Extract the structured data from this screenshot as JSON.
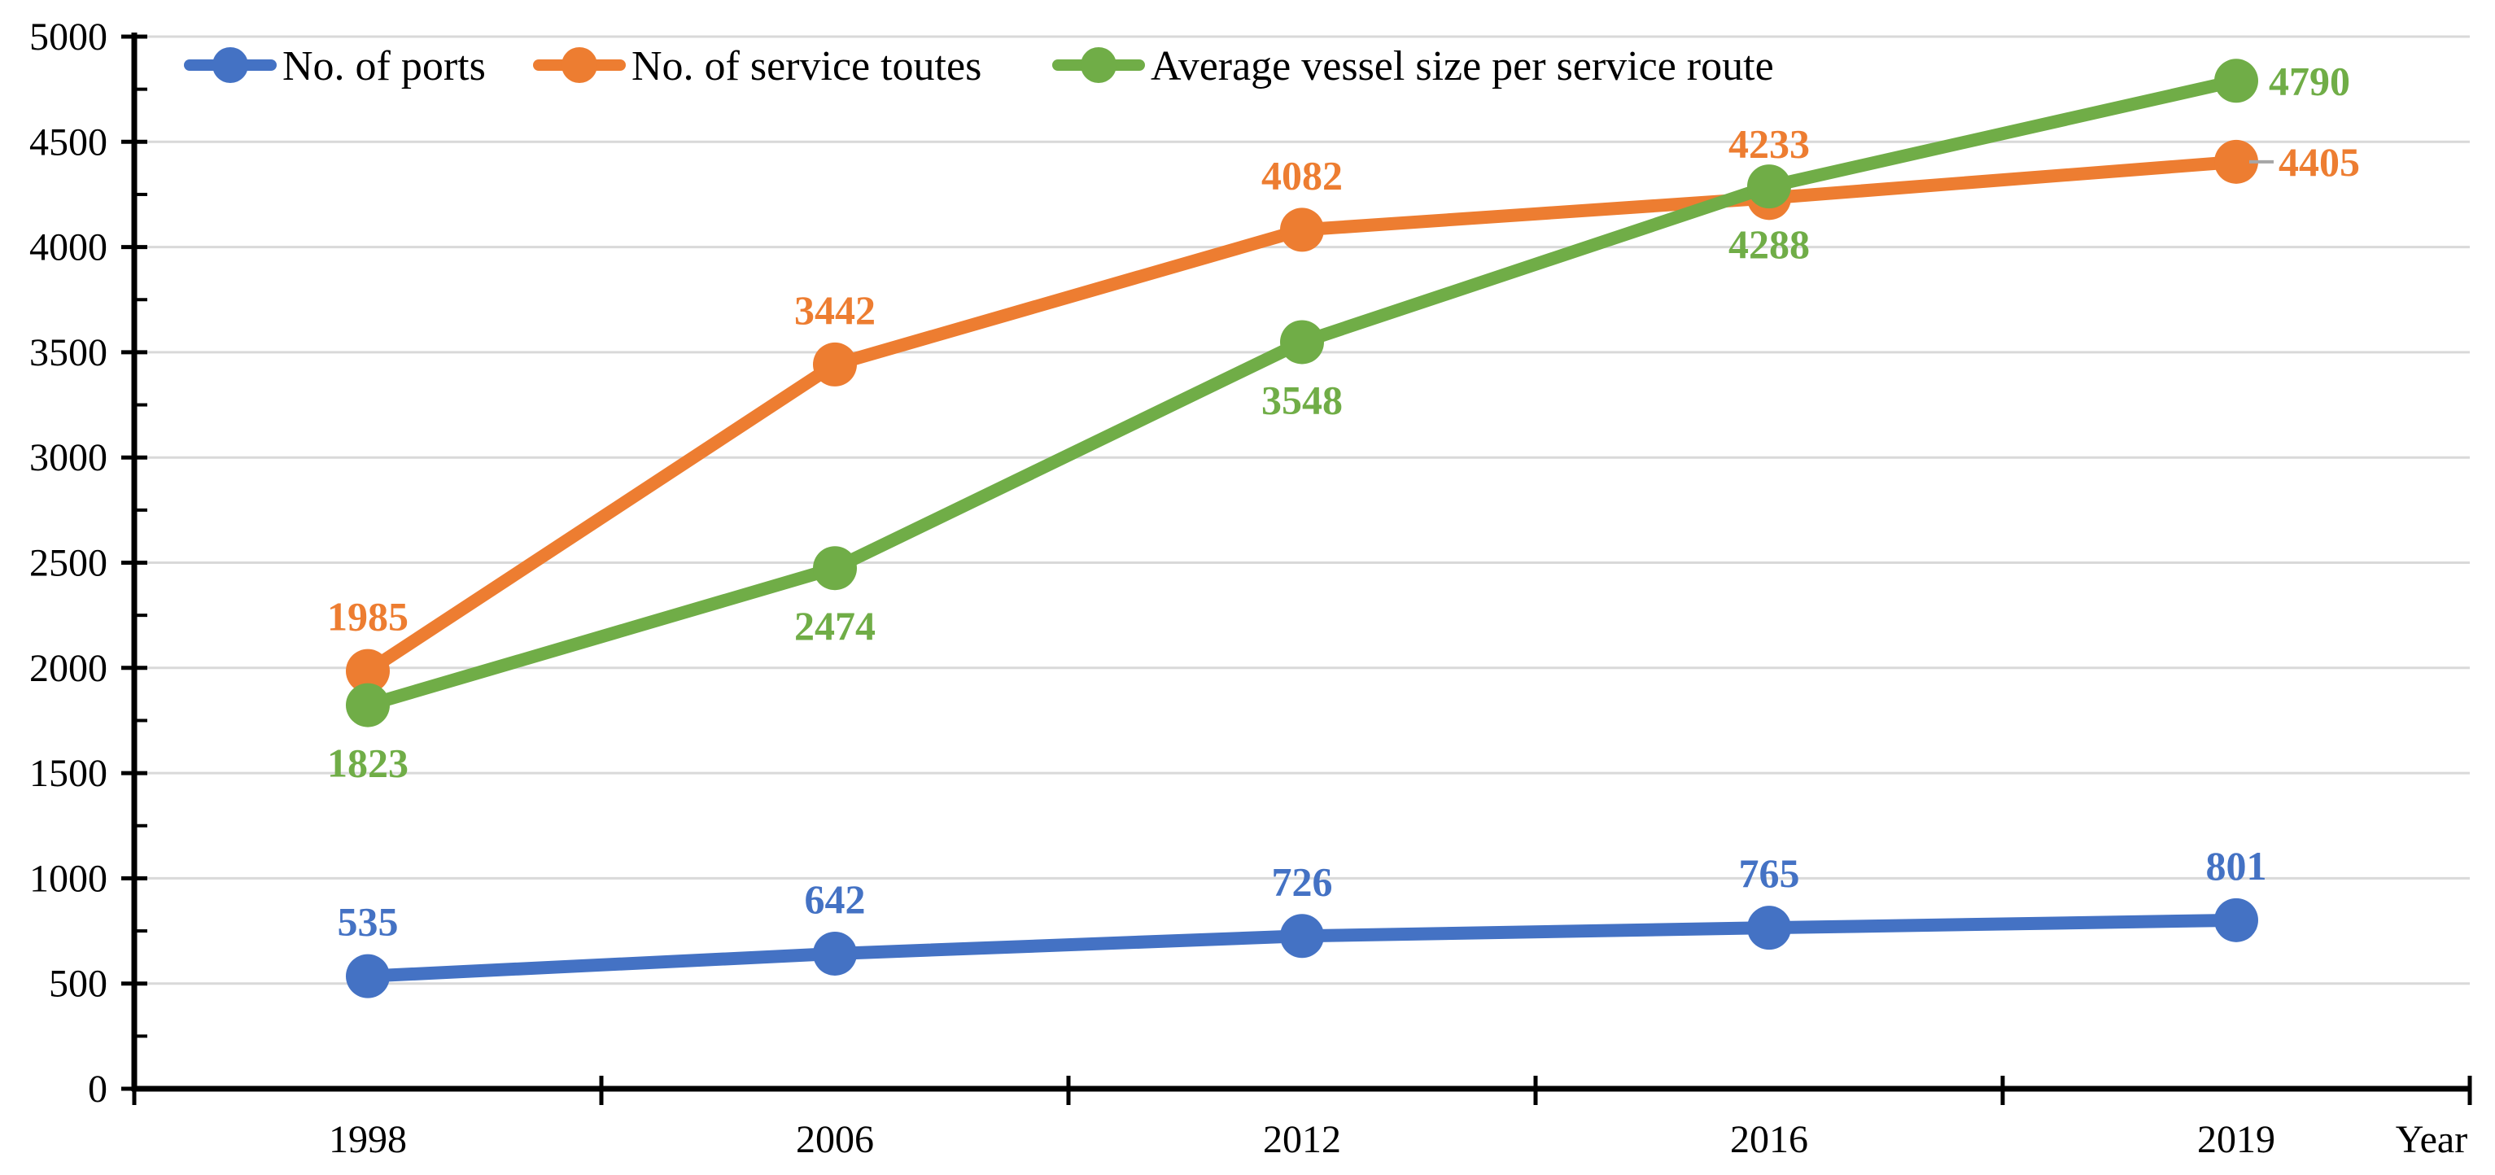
{
  "chart_data": {
    "type": "line",
    "title": "",
    "xlabel": "Year",
    "ylabel": "",
    "categories": [
      "1998",
      "2006",
      "2012",
      "2016",
      "2019"
    ],
    "series": [
      {
        "name": "No. of ports",
        "color": "#4472C4",
        "values": [
          535,
          642,
          726,
          765,
          801
        ],
        "label_placement": "above"
      },
      {
        "name": "No. of service toutes",
        "color": "#ED7D31",
        "values": [
          1985,
          3442,
          4082,
          4233,
          4405
        ],
        "label_placement": "above",
        "last_label_placement": "right",
        "last_label_leader": true
      },
      {
        "name": "Average vessel size per service route",
        "color": "#70AD47",
        "values": [
          1823,
          2474,
          3548,
          4288,
          4790
        ],
        "label_placement": "below",
        "last_label_placement": "right"
      }
    ],
    "ylim": [
      0,
      5000
    ],
    "ytick_step": 500,
    "yminor_step": 250,
    "ytick_labels": [
      "0",
      "500",
      "1000",
      "1500",
      "2000",
      "2500",
      "3000",
      "3500",
      "4000",
      "4500",
      "5000"
    ],
    "grid": "horizontal-major",
    "legend_position": "top-left-inside",
    "colors": {
      "gridline": "#D9D9D9",
      "axis": "#000000",
      "tick_text": "#000000",
      "data_label_leader": "#A6A6A6",
      "background": "#FFFFFF"
    }
  }
}
